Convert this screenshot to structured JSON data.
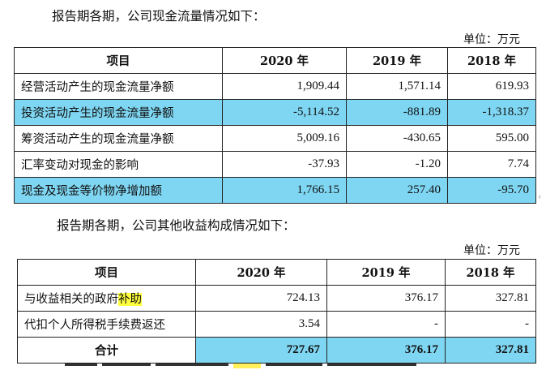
{
  "cash_flow": {
    "intro": "报告期各期，公司现金流量情况如下：",
    "unit": "单位：万元",
    "headers": [
      "项目",
      "2020 年",
      "2019 年",
      "2018 年"
    ],
    "rows": [
      {
        "label": "经营活动产生的现金流量净额",
        "values": [
          "1,909.44",
          "1,571.14",
          "619.93"
        ],
        "highlight": false
      },
      {
        "label": "投资活动产生的现金流量净额",
        "values": [
          "-5,114.52",
          "-881.89",
          "-1,318.37"
        ],
        "highlight": true
      },
      {
        "label": "筹资活动产生的现金流量净额",
        "values": [
          "5,009.16",
          "-430.65",
          "595.00"
        ],
        "highlight": false
      },
      {
        "label": "汇率变动对现金的影响",
        "values": [
          "-37.93",
          "-1.20",
          "7.74"
        ],
        "highlight": false
      },
      {
        "label": "现金及现金等价物净增加额",
        "values": [
          "1,766.15",
          "257.40",
          "-95.70"
        ],
        "highlight": true
      }
    ]
  },
  "other_income": {
    "intro": "报告期各期，公司其他收益构成情况如下：",
    "unit": "单位：万元",
    "headers": [
      "项目",
      "2020 年",
      "2019 年",
      "2018 年"
    ],
    "rows": [
      {
        "label_prefix": "与收益相关的政府",
        "label_mark": "补助",
        "values": [
          "724.13",
          "376.17",
          "327.81"
        ]
      },
      {
        "label": "代扣个人所得税手续费返还",
        "values": [
          "3.54",
          "-",
          "-"
        ]
      }
    ],
    "total": {
      "label": "合计",
      "values": [
        "727.67",
        "376.17",
        "327.81"
      ]
    }
  },
  "colors": {
    "highlight_cyan": "#7fd6f2",
    "highlight_yellow": "#ffff3d"
  }
}
